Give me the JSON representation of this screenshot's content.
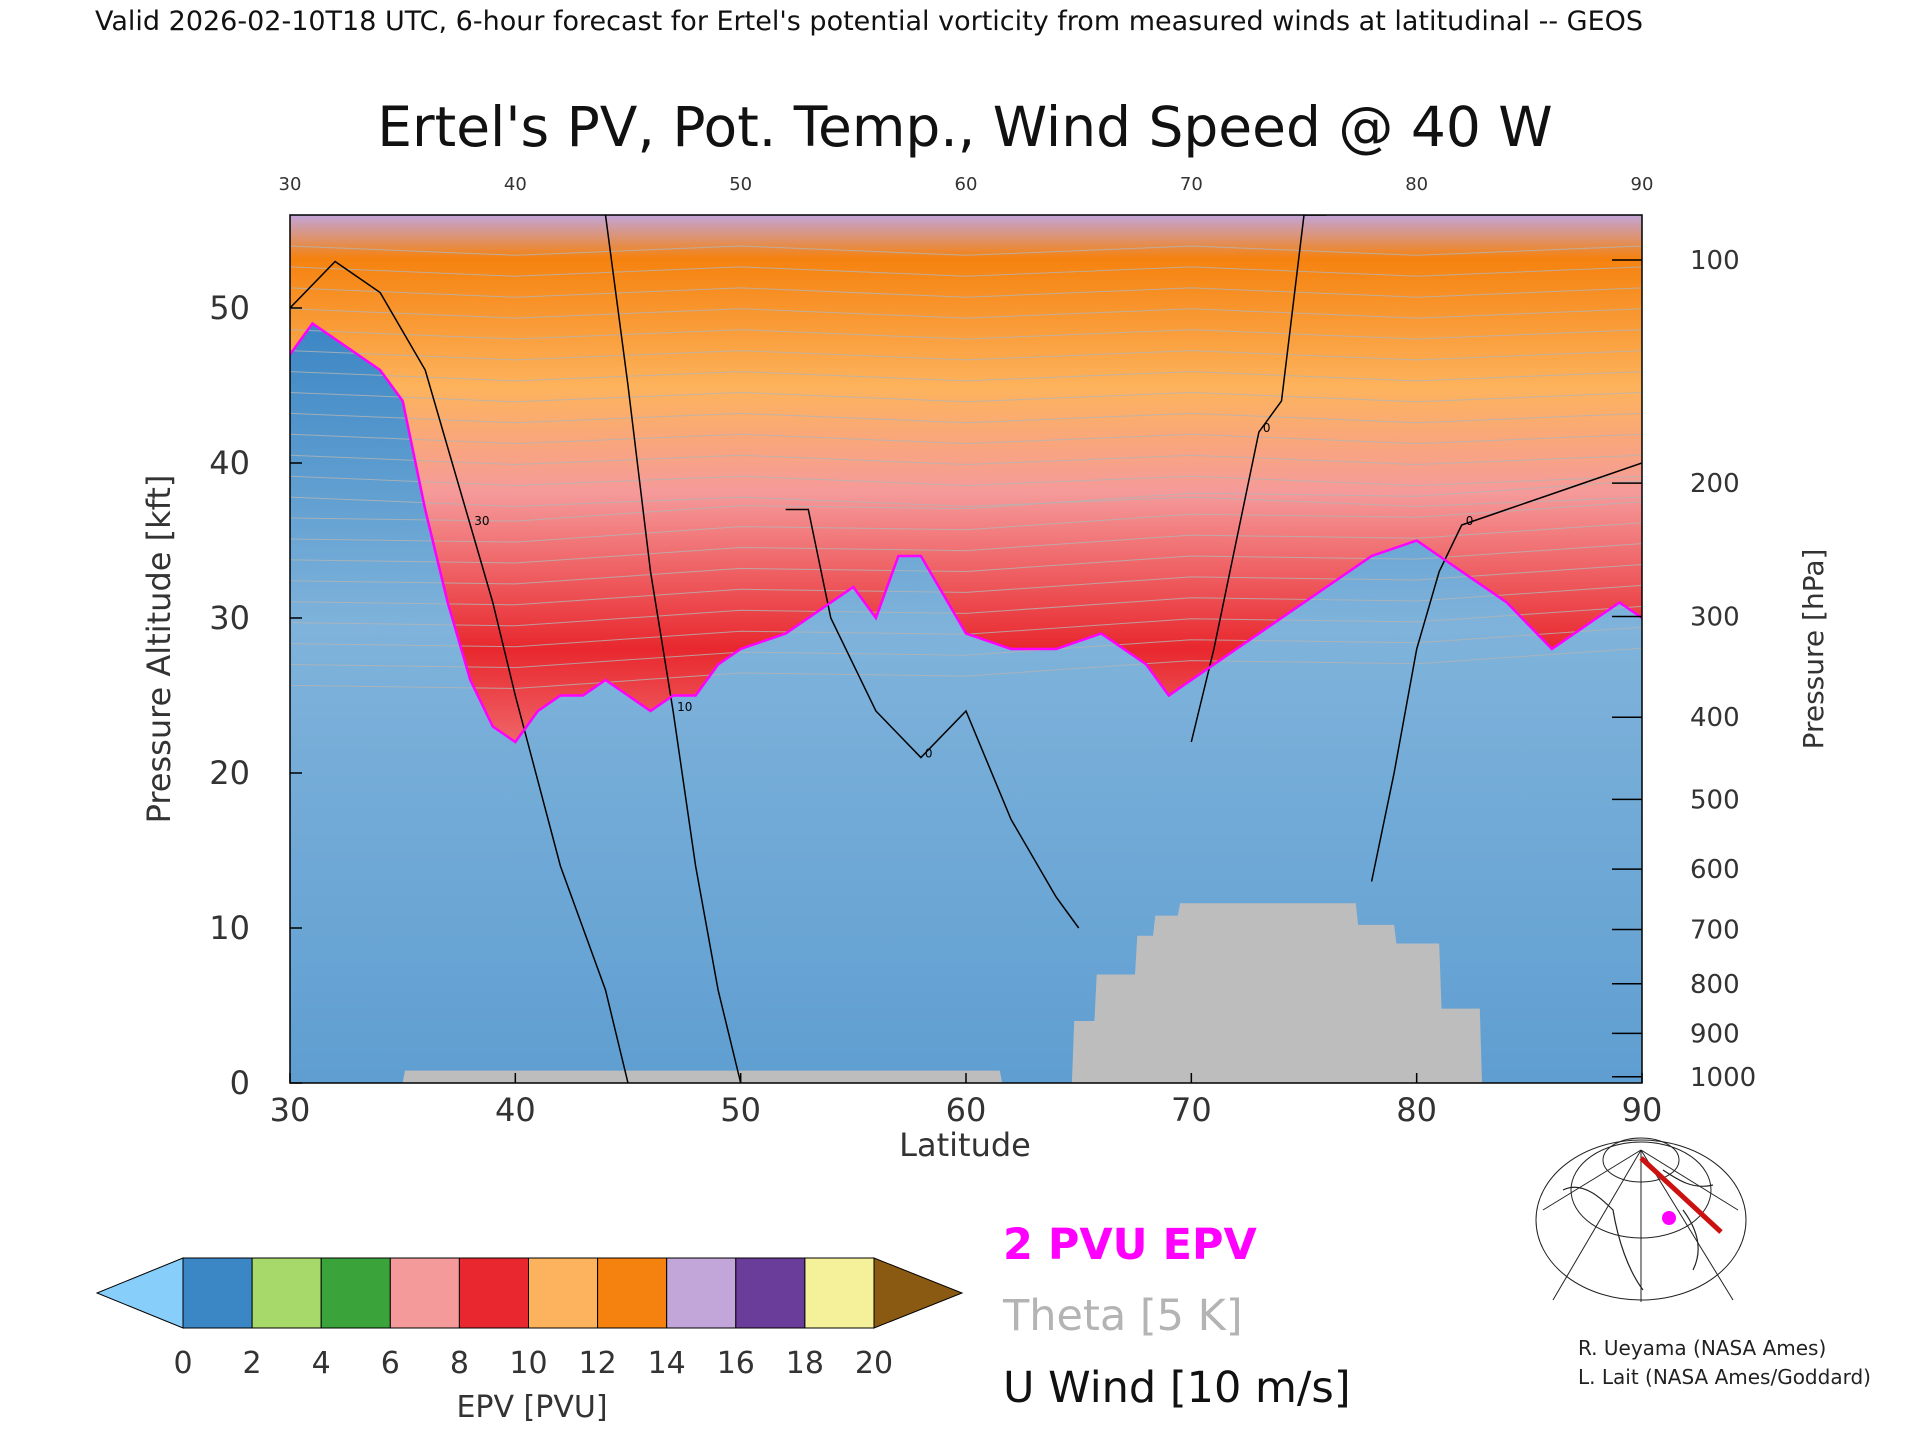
{
  "header": {
    "valid_line": "Valid 2026-02-10T18 UTC, 6-hour forecast for Ertel's potential vorticity from measured winds at latitudinal -- GEOS"
  },
  "chart_data": {
    "type": "heatmap",
    "title": "Ertel's PV, Pot. Temp., Wind Speed @ 40 W",
    "xlabel": "Latitude",
    "ylabel": "Pressure Altitude [kft]",
    "ylabel_right": "Pressure [hPa]",
    "xlim": [
      30,
      90
    ],
    "ylim": [
      0,
      56
    ],
    "x_ticks": [
      30,
      40,
      50,
      60,
      70,
      80,
      90
    ],
    "top_ticks": [
      "30",
      "40",
      "50",
      "60",
      "70",
      "80",
      "90"
    ],
    "y_ticks": [
      0,
      10,
      20,
      30,
      40,
      50
    ],
    "right_axis_ticks": [
      {
        "label": "100",
        "kft": 53.1
      },
      {
        "label": "200",
        "kft": 38.7
      },
      {
        "label": "300",
        "kft": 30.1
      },
      {
        "label": "400",
        "kft": 23.6
      },
      {
        "label": "500",
        "kft": 18.3
      },
      {
        "label": "600",
        "kft": 13.8
      },
      {
        "label": "700",
        "kft": 9.9
      },
      {
        "label": "800",
        "kft": 6.4
      },
      {
        "label": "900",
        "kft": 3.2
      },
      {
        "label": "1000",
        "kft": 0.4
      }
    ],
    "pv2_tropopause": {
      "lat": [
        30,
        31,
        32,
        33,
        34,
        35,
        36,
        37,
        38,
        39,
        40,
        41,
        42,
        43,
        44,
        45,
        46,
        47,
        48,
        49,
        50,
        52,
        54,
        55,
        56,
        57,
        58,
        60,
        62,
        64,
        66,
        68,
        69,
        70,
        72,
        74,
        76,
        78,
        80,
        82,
        84,
        86,
        88,
        89,
        90
      ],
      "kft": [
        47,
        49,
        48,
        47,
        46,
        44,
        37,
        31,
        26,
        23,
        22,
        24,
        25,
        25,
        26,
        25,
        24,
        25,
        25,
        27,
        28,
        29,
        31,
        32,
        30,
        34,
        34,
        29,
        28,
        28,
        29,
        27,
        25,
        26,
        28,
        30,
        32,
        34,
        35,
        33,
        31,
        28,
        30,
        31,
        30
      ]
    },
    "u_wind_contours_kft_10ms": [
      {
        "level": "30",
        "lat": [
          30,
          32,
          34,
          36,
          37,
          38,
          39,
          40,
          42,
          44,
          45
        ],
        "kft": [
          50,
          53,
          51,
          46,
          41,
          36,
          31,
          25,
          14,
          6,
          0
        ]
      },
      {
        "level": "10",
        "lat": [
          44,
          45,
          46,
          47,
          48,
          49,
          50
        ],
        "kft": [
          56,
          45,
          33,
          24,
          14,
          6,
          0
        ]
      },
      {
        "level": "0",
        "lat": [
          52,
          53,
          54,
          56,
          58,
          60,
          62,
          64,
          65
        ],
        "kft": [
          37,
          37,
          30,
          24,
          21,
          24,
          17,
          12,
          10
        ]
      },
      {
        "level": "0",
        "lat": [
          70,
          71,
          72,
          73,
          74,
          75,
          76
        ],
        "kft": [
          22,
          28,
          35,
          42,
          44,
          56,
          56
        ]
      },
      {
        "level": "0",
        "lat": [
          78,
          79,
          80,
          81,
          82,
          84,
          86,
          88,
          90
        ],
        "kft": [
          13,
          20,
          28,
          33,
          36,
          37,
          38,
          39,
          40
        ]
      }
    ],
    "terrain_kft": {
      "lat": [
        30,
        35,
        35.1,
        61.5,
        61.6,
        64.7,
        64.8,
        65.7,
        65.8,
        67.5,
        67.6,
        68.3,
        68.4,
        69.4,
        69.5,
        77.3,
        77.4,
        79.0,
        79.1,
        81.0,
        81.1,
        82.8,
        82.9,
        90
      ],
      "kft": [
        0,
        0,
        0.8,
        0.8,
        0,
        0,
        4,
        4,
        7,
        7,
        9.5,
        9.5,
        10.8,
        10.8,
        11.6,
        11.6,
        10.2,
        10.2,
        9,
        9,
        4.8,
        4.8,
        0,
        0
      ]
    },
    "colorbar": {
      "label": "EPV [PVU]",
      "tick_labels": [
        "0",
        "2",
        "4",
        "6",
        "8",
        "10",
        "12",
        "14",
        "16",
        "18",
        "20"
      ],
      "under_color": "#87cefa",
      "over_color": "#8b5a12",
      "bands": [
        {
          "from": 0,
          "to": 2,
          "color": "#3b86c4"
        },
        {
          "from": 2,
          "to": 4,
          "color": "#a6d96a"
        },
        {
          "from": 4,
          "to": 6,
          "color": "#3aa33a"
        },
        {
          "from": 6,
          "to": 8,
          "color": "#f59a9a"
        },
        {
          "from": 8,
          "to": 10,
          "color": "#e8282e"
        },
        {
          "from": 10,
          "to": 12,
          "color": "#fdb35d"
        },
        {
          "from": 12,
          "to": 14,
          "color": "#f5820f"
        },
        {
          "from": 14,
          "to": 16,
          "color": "#c2a5d9"
        },
        {
          "from": 16,
          "to": 18,
          "color": "#6a3d9a"
        },
        {
          "from": 18,
          "to": 20,
          "color": "#f5f09a"
        }
      ]
    },
    "legend": {
      "pv_line": "2 PVU EPV",
      "theta": "Theta [5 K]",
      "u_wind": "U Wind [10 m/s]",
      "pv_color": "#ff00ff",
      "theta_color": "#b4b4b4",
      "wind_color": "#000000"
    }
  },
  "credits": {
    "line1": "R. Ueyama (NASA Ames)",
    "line2": "L. Lait (NASA Ames/Goddard)"
  },
  "colors": {
    "terrain": "#bdbdbd",
    "tropo_line": "#ff00ff",
    "axis": "#000000",
    "text": "#333333"
  }
}
